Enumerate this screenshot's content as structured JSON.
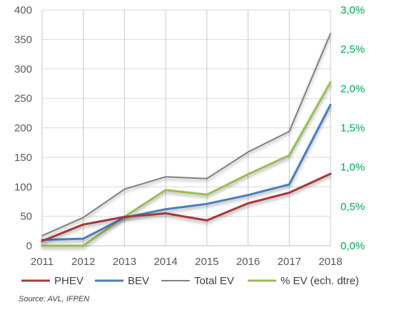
{
  "chart_data": {
    "type": "line",
    "x": [
      "2011",
      "2012",
      "2013",
      "2014",
      "2015",
      "2016",
      "2017",
      "2018"
    ],
    "ylim": [
      0,
      400
    ],
    "yticks": [
      0,
      50,
      100,
      150,
      200,
      250,
      300,
      350,
      400
    ],
    "y2lim": [
      0,
      0.03
    ],
    "y2ticks": [
      "0,0%",
      "0,5%",
      "1,0%",
      "1,5%",
      "2,0%",
      "2,5%",
      "3,0%"
    ],
    "grid": true,
    "legend_position": "bottom",
    "series": [
      {
        "name": "PHEV",
        "axis": "left",
        "color": "#a5393b",
        "values": [
          8,
          36,
          49,
          55,
          43,
          72,
          90,
          122
        ]
      },
      {
        "name": "BEV",
        "axis": "left",
        "color": "#4a7ebb",
        "values": [
          10,
          12,
          48,
          62,
          71,
          86,
          104,
          239
        ]
      },
      {
        "name": "Total EV",
        "axis": "left",
        "color": "#808080",
        "values": [
          17,
          48,
          96,
          117,
          114,
          159,
          194,
          360
        ]
      },
      {
        "name": "% EV (ech. dtre)",
        "axis": "right",
        "color": "#9bbb59",
        "values": [
          0.0,
          0.0,
          0.0037,
          0.0071,
          0.0065,
          0.0091,
          0.0115,
          0.0208
        ]
      }
    ]
  },
  "source": "Source: AVL, IFPEN"
}
